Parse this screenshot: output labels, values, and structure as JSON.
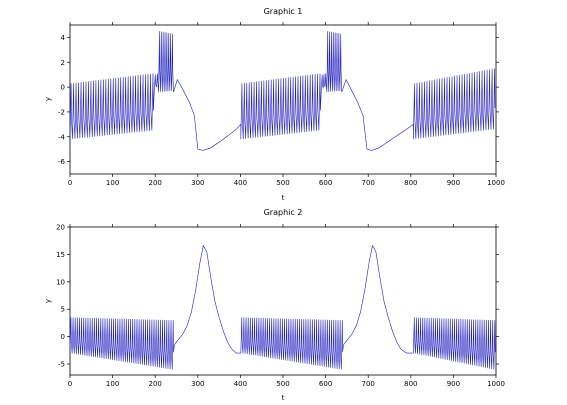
{
  "chart_data": [
    {
      "type": "line",
      "title": "Graphic 1",
      "xlabel": "t",
      "ylabel": "y",
      "xlim": [
        0,
        1000
      ],
      "ylim": [
        -7,
        5
      ],
      "xticks": [
        0,
        100,
        200,
        300,
        400,
        500,
        600,
        700,
        800,
        900,
        1000
      ],
      "yticks": [
        -6,
        -4,
        -2,
        0,
        2,
        4
      ],
      "grid": false,
      "legend": "none",
      "series": [
        {
          "color": "#1f1fbf",
          "segments": [
            {
              "kind": "osc",
              "t0": 0,
              "t1": 198,
              "period": 5.8,
              "hi0": 0.3,
              "hi1": 1.1,
              "lo0": -4.2,
              "lo1": -3.5
            },
            {
              "kind": "osc",
              "t0": 198,
              "t1": 208,
              "period": 5.0,
              "hi0": 1.0,
              "hi1": 1.1,
              "lo0": -0.2,
              "lo1": 0.0
            },
            {
              "kind": "osc",
              "t0": 208,
              "t1": 243,
              "period": 4.4,
              "hi0": 4.5,
              "hi1": 4.3,
              "lo0": -0.4,
              "lo1": -0.3
            },
            {
              "kind": "pts",
              "t": [
                243,
                252,
                265,
                280,
                292,
                300,
                312,
                330,
                360,
                390,
                401
              ],
              "y": [
                -0.4,
                0.6,
                -0.2,
                -1.2,
                -2.3,
                -5.0,
                -5.1,
                -4.9,
                -4.2,
                -3.4,
                -3.0
              ]
            },
            {
              "kind": "osc",
              "t0": 401,
              "t1": 590,
              "period": 5.8,
              "hi0": 0.3,
              "hi1": 1.1,
              "lo0": -4.2,
              "lo1": -3.5
            },
            {
              "kind": "osc",
              "t0": 590,
              "t1": 603,
              "period": 5.0,
              "hi0": 1.0,
              "hi1": 1.1,
              "lo0": -0.2,
              "lo1": 0.0
            },
            {
              "kind": "osc",
              "t0": 603,
              "t1": 638,
              "period": 4.4,
              "hi0": 4.5,
              "hi1": 4.3,
              "lo0": -0.4,
              "lo1": -0.3
            },
            {
              "kind": "pts",
              "t": [
                638,
                648,
                660,
                675,
                688,
                697,
                708,
                725,
                755,
                790,
                806
              ],
              "y": [
                -0.4,
                0.6,
                -0.2,
                -1.2,
                -2.3,
                -5.0,
                -5.1,
                -4.9,
                -4.2,
                -3.4,
                -3.0
              ]
            },
            {
              "kind": "osc",
              "t0": 806,
              "t1": 1000,
              "period": 5.8,
              "hi0": 0.3,
              "hi1": 1.5,
              "lo0": -4.2,
              "lo1": -3.4
            }
          ]
        }
      ]
    },
    {
      "type": "line",
      "title": "Graphic 2",
      "xlabel": "t",
      "ylabel": "y",
      "xlim": [
        0,
        1000
      ],
      "ylim": [
        -7,
        20
      ],
      "xticks": [
        0,
        100,
        200,
        300,
        400,
        500,
        600,
        700,
        800,
        900,
        1000
      ],
      "yticks": [
        -5,
        0,
        5,
        10,
        15,
        20
      ],
      "grid": false,
      "legend": "none",
      "series": [
        {
          "color": "#1f1fbf",
          "segments": [
            {
              "kind": "osc",
              "t0": 0,
              "t1": 245,
              "period": 5.0,
              "hi0": 3.5,
              "hi1": 3.0,
              "lo0": -3.0,
              "lo1": -6.0
            },
            {
              "kind": "pts",
              "t": [
                245,
                255,
                265,
                275,
                285,
                295,
                305,
                313,
                321,
                330,
                340,
                350,
                360,
                370,
                380,
                390,
                401
              ],
              "y": [
                -1.5,
                -0.5,
                0.5,
                2.0,
                4.5,
                8.5,
                13.5,
                16.6,
                15.5,
                11.0,
                6.5,
                3.5,
                1.0,
                -1.0,
                -2.3,
                -3.0,
                -3.0
              ]
            },
            {
              "kind": "osc",
              "t0": 401,
              "t1": 642,
              "period": 5.0,
              "hi0": 3.5,
              "hi1": 3.0,
              "lo0": -3.0,
              "lo1": -6.0
            },
            {
              "kind": "pts",
              "t": [
                642,
                652,
                662,
                672,
                682,
                692,
                702,
                710,
                718,
                727,
                737,
                747,
                757,
                767,
                777,
                790,
                806
              ],
              "y": [
                -1.5,
                -0.5,
                0.5,
                2.0,
                4.5,
                8.5,
                13.5,
                16.6,
                15.5,
                11.0,
                6.5,
                3.5,
                1.0,
                -1.0,
                -2.3,
                -3.0,
                -3.0
              ]
            },
            {
              "kind": "osc",
              "t0": 806,
              "t1": 1000,
              "period": 5.0,
              "hi0": 3.5,
              "hi1": 3.0,
              "lo0": -3.0,
              "lo1": -6.0
            }
          ]
        }
      ]
    }
  ]
}
